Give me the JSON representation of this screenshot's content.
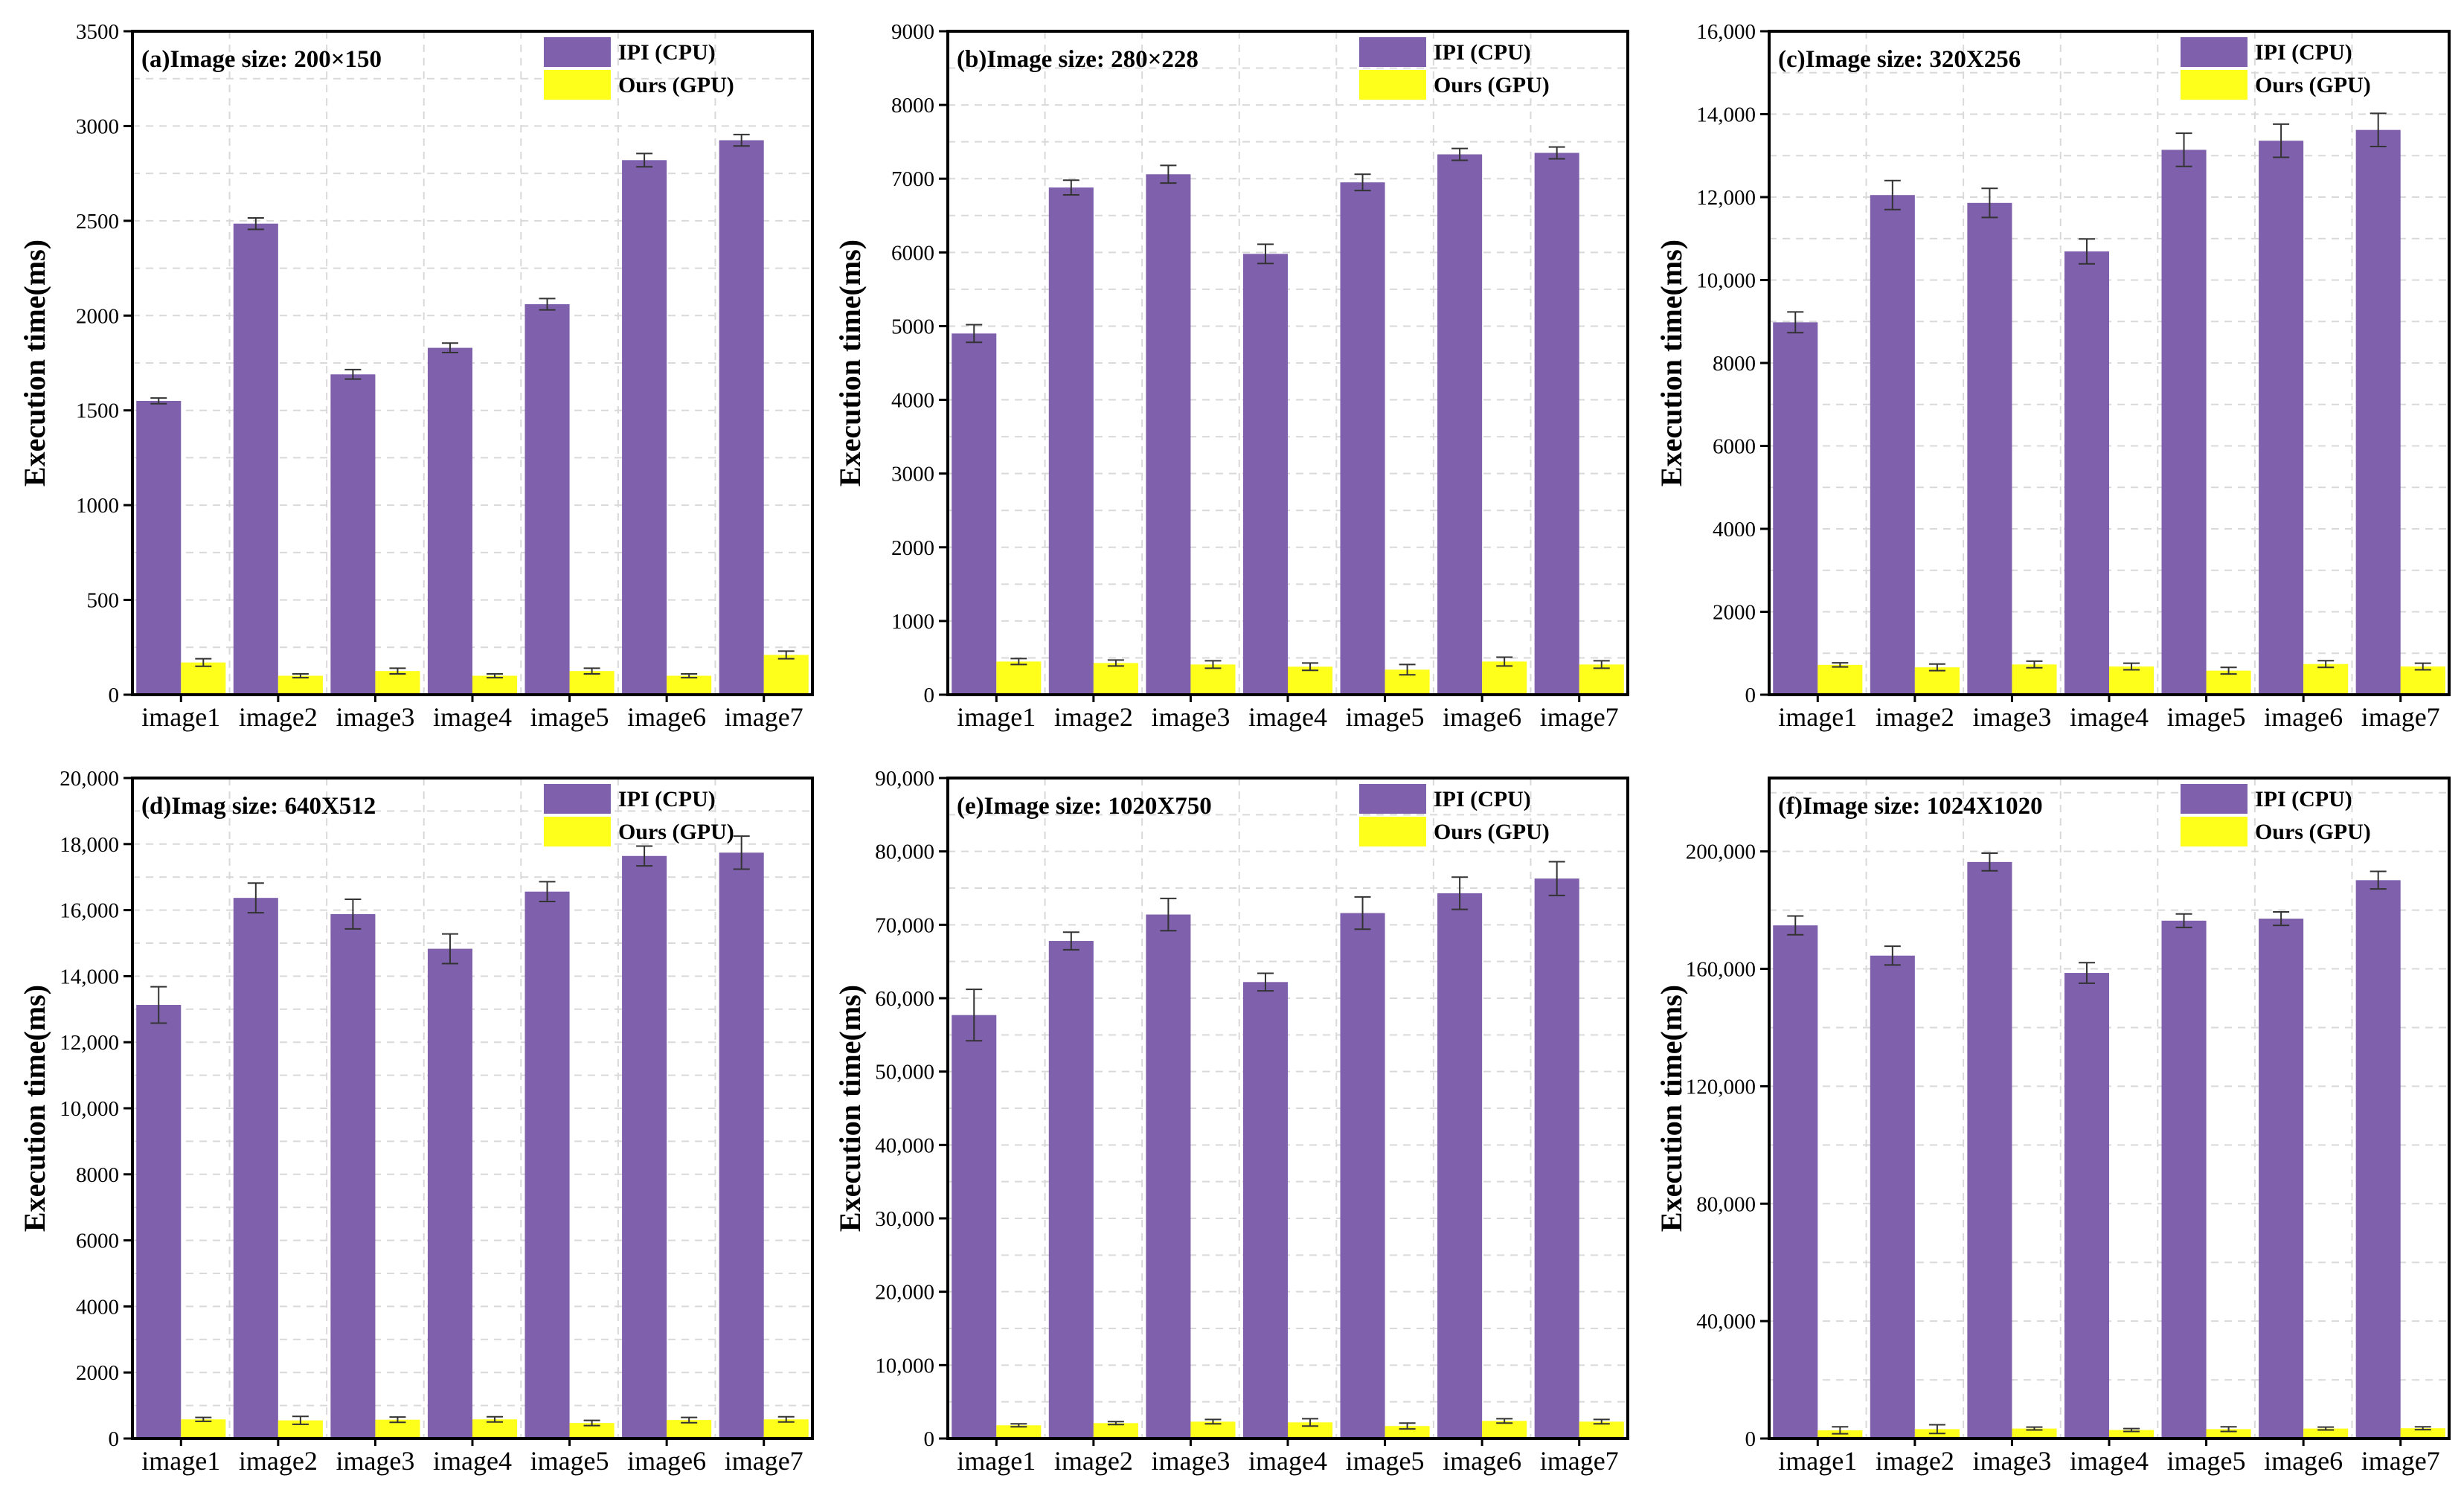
{
  "legend_colors": {
    "IPI (CPU)": "#7e60ac",
    "Ours (GPU)": "#ffff1c"
  },
  "chart_data": [
    {
      "type": "bar",
      "title": "(a)Image size: 200×150",
      "xlabel": "",
      "ylabel": "Execution time(ms)",
      "categories": [
        "image1",
        "image2",
        "image3",
        "image4",
        "image5",
        "image6",
        "image7"
      ],
      "ylim": [
        0,
        3500
      ],
      "yticks": [
        0,
        500,
        1000,
        1500,
        2000,
        2500,
        3000,
        3500
      ],
      "ytick_labels": [
        "0",
        "500",
        "1000",
        "1500",
        "2000",
        "2500",
        "3000",
        "3500"
      ],
      "grid": true,
      "legend_position": "top-right",
      "series": [
        {
          "name": "IPI (CPU)",
          "color": "#7e60ac",
          "values": [
            1550,
            2485,
            1690,
            1830,
            2060,
            2820,
            2925
          ],
          "errors": [
            15,
            30,
            25,
            25,
            30,
            35,
            30
          ]
        },
        {
          "name": "Ours (GPU)",
          "color": "#ffff1c",
          "values": [
            170,
            100,
            125,
            100,
            125,
            100,
            210
          ],
          "errors": [
            20,
            10,
            15,
            10,
            15,
            10,
            20
          ]
        }
      ]
    },
    {
      "type": "bar",
      "title": "(b)Image size: 280×228",
      "xlabel": "",
      "ylabel": "Execution time(ms)",
      "categories": [
        "image1",
        "image2",
        "image3",
        "image4",
        "image5",
        "image6",
        "image7"
      ],
      "ylim": [
        0,
        9000
      ],
      "yticks": [
        0,
        1000,
        2000,
        3000,
        4000,
        5000,
        6000,
        7000,
        8000,
        9000
      ],
      "ytick_labels": [
        "0",
        "1000",
        "2000",
        "3000",
        "4000",
        "5000",
        "6000",
        "7000",
        "8000",
        "9000"
      ],
      "grid": true,
      "legend_position": "top-right",
      "series": [
        {
          "name": "IPI (CPU)",
          "color": "#7e60ac",
          "values": [
            4900,
            6880,
            7060,
            5980,
            6950,
            7330,
            7350
          ],
          "errors": [
            120,
            100,
            120,
            130,
            110,
            80,
            80
          ]
        },
        {
          "name": "Ours (GPU)",
          "color": "#ffff1c",
          "values": [
            450,
            430,
            410,
            380,
            340,
            450,
            410
          ],
          "errors": [
            40,
            40,
            50,
            50,
            70,
            60,
            50
          ]
        }
      ]
    },
    {
      "type": "bar",
      "title": "(c)Image size: 320X256",
      "xlabel": "",
      "ylabel": "Execution time(ms)",
      "categories": [
        "image1",
        "image2",
        "image3",
        "image4",
        "image5",
        "image6",
        "image7"
      ],
      "ylim": [
        0,
        16000
      ],
      "yticks": [
        0,
        2000,
        4000,
        6000,
        8000,
        10000,
        12000,
        14000,
        16000
      ],
      "ytick_labels": [
        "0",
        "2000",
        "4000",
        "6000",
        "8000",
        "10,000",
        "12,000",
        "14,000",
        "16,000"
      ],
      "grid": true,
      "legend_position": "top-right",
      "series": [
        {
          "name": "IPI (CPU)",
          "color": "#7e60ac",
          "values": [
            8980,
            12050,
            11860,
            10690,
            13140,
            13360,
            13620
          ],
          "errors": [
            250,
            350,
            350,
            300,
            400,
            400,
            400
          ]
        },
        {
          "name": "Ours (GPU)",
          "color": "#ffff1c",
          "values": [
            720,
            660,
            730,
            680,
            580,
            740,
            680
          ],
          "errors": [
            50,
            80,
            80,
            80,
            80,
            80,
            80
          ]
        }
      ]
    },
    {
      "type": "bar",
      "title": "(d)Imag size: 640X512",
      "xlabel": "",
      "ylabel": "Execution time(ms)",
      "categories": [
        "image1",
        "image2",
        "image3",
        "image4",
        "image5",
        "image6",
        "image7"
      ],
      "ylim": [
        0,
        20000
      ],
      "yticks": [
        0,
        2000,
        4000,
        6000,
        8000,
        10000,
        12000,
        14000,
        16000,
        18000,
        20000
      ],
      "ytick_labels": [
        "0",
        "2000",
        "4000",
        "6000",
        "8000",
        "10,000",
        "12,000",
        "14,000",
        "16,000",
        "18,000",
        "20,000"
      ],
      "grid": true,
      "legend_position": "top-right",
      "series": [
        {
          "name": "IPI (CPU)",
          "color": "#7e60ac",
          "values": [
            13130,
            16370,
            15880,
            14830,
            16560,
            17640,
            17740
          ],
          "errors": [
            550,
            450,
            450,
            450,
            300,
            300,
            500
          ]
        },
        {
          "name": "Ours (GPU)",
          "color": "#ffff1c",
          "values": [
            580,
            550,
            570,
            580,
            470,
            560,
            580
          ],
          "errors": [
            60,
            120,
            80,
            80,
            80,
            80,
            80
          ]
        }
      ]
    },
    {
      "type": "bar",
      "title": "(e)Image size: 1020X750",
      "xlabel": "",
      "ylabel": "Execution time(ms)",
      "categories": [
        "image1",
        "image2",
        "image3",
        "image4",
        "image5",
        "image6",
        "image7"
      ],
      "ylim": [
        0,
        90000
      ],
      "yticks": [
        0,
        10000,
        20000,
        30000,
        40000,
        50000,
        60000,
        70000,
        80000,
        90000
      ],
      "ytick_labels": [
        "0",
        "10,000",
        "20,000",
        "30,000",
        "40,000",
        "50,000",
        "60,000",
        "70,000",
        "80,000",
        "90,000"
      ],
      "grid": true,
      "legend_position": "top-right",
      "series": [
        {
          "name": "IPI (CPU)",
          "color": "#7e60ac",
          "values": [
            57700,
            67800,
            71400,
            62200,
            71600,
            74300,
            76300
          ],
          "errors": [
            3500,
            1200,
            2200,
            1200,
            2200,
            2200,
            2300
          ]
        },
        {
          "name": "Ours (GPU)",
          "color": "#ffff1c",
          "values": [
            1800,
            2100,
            2300,
            2200,
            1700,
            2400,
            2300
          ],
          "errors": [
            200,
            200,
            300,
            500,
            400,
            300,
            300
          ]
        }
      ]
    },
    {
      "type": "bar",
      "title": "(f)Image size: 1024X1020",
      "xlabel": "",
      "ylabel": "Execution time(ms)",
      "categories": [
        "image1",
        "image2",
        "image3",
        "image4",
        "image5",
        "image6",
        "image7"
      ],
      "ylim": [
        0,
        225000
      ],
      "yticks": [
        0,
        40000,
        80000,
        120000,
        160000,
        200000
      ],
      "ytick_labels": [
        "0",
        "40,000",
        "80,000",
        "120,000",
        "160,000",
        "200,000"
      ],
      "grid": true,
      "legend_position": "top-right",
      "series": [
        {
          "name": "IPI (CPU)",
          "color": "#7e60ac",
          "values": [
            174800,
            164500,
            196400,
            158600,
            176400,
            177100,
            190200
          ],
          "errors": [
            3200,
            3200,
            3000,
            3500,
            2300,
            2300,
            3000
          ]
        },
        {
          "name": "Ours (GPU)",
          "color": "#ffff1c",
          "values": [
            2800,
            3200,
            3400,
            2900,
            3200,
            3400,
            3500
          ],
          "errors": [
            1200,
            1500,
            500,
            500,
            800,
            500,
            500
          ]
        }
      ]
    }
  ]
}
